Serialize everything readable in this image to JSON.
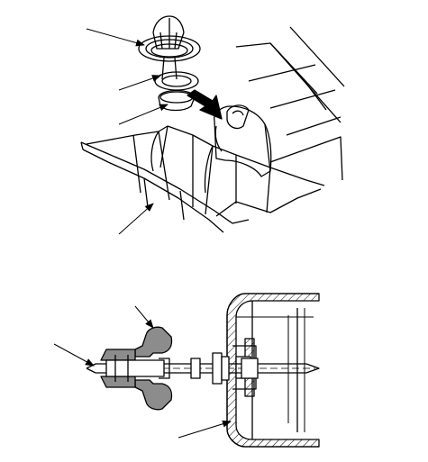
{
  "colors": {
    "background": "#ffffff",
    "ink": "#000000",
    "fill_dark": "#8c8c8c"
  },
  "figures": [
    {
      "name": "upper-figure",
      "kind": "exploded-view",
      "callouts": 4,
      "labels": []
    },
    {
      "name": "lower-figure",
      "kind": "cross-section",
      "callouts": 3,
      "labels": []
    }
  ]
}
